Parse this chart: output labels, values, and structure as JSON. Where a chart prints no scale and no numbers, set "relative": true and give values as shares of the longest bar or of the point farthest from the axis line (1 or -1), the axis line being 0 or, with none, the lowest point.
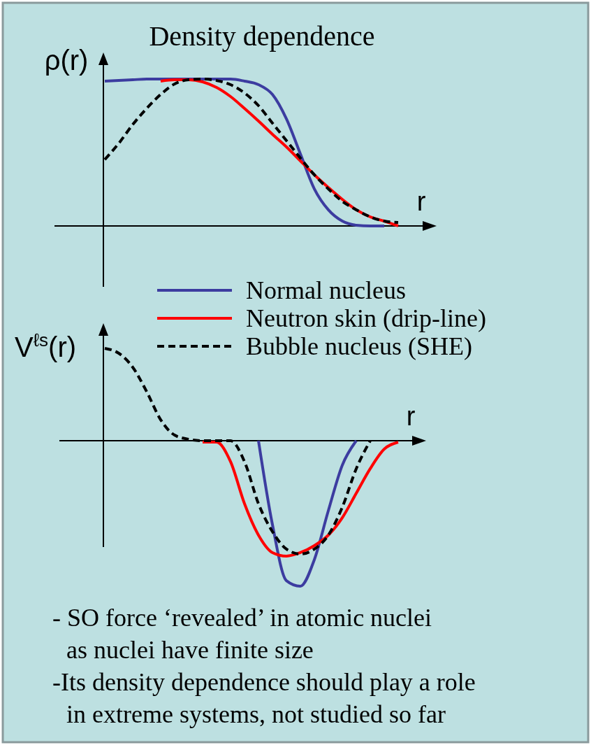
{
  "chart_data": [
    {
      "type": "line",
      "title": "Density dependence",
      "ylabel": "ρ(r)",
      "xlabel": "r",
      "relative": true,
      "categories": [
        null,
        null,
        null,
        null,
        null,
        null,
        null,
        null,
        null,
        null,
        null,
        null,
        null,
        null,
        null,
        null,
        null,
        null,
        null,
        null,
        null,
        null
      ],
      "series": [
        {
          "color": "#3c3ca0",
          "values": [
            0.986,
            0.99,
            0.995,
            1,
            1,
            1,
            1,
            1,
            1,
            1,
            0.986,
            0.962,
            0.895,
            0.729,
            0.49,
            0.252,
            0.11,
            0.033,
            0.005,
            0,
            0,
            null
          ]
        },
        {
          "color": "#ff0000",
          "values": [
            null,
            null,
            null,
            null,
            0.986,
            0.995,
            0.995,
            0.981,
            0.943,
            0.881,
            0.8,
            0.714,
            0.624,
            0.538,
            0.443,
            0.348,
            0.262,
            0.181,
            0.11,
            0.062,
            0.033,
            0
          ]
        },
        {
          "color": "#000000",
          "line_style": "dashed",
          "values": [
            0.452,
            0.562,
            0.69,
            0.8,
            0.895,
            0.967,
            0.995,
            1,
            0.99,
            0.962,
            0.905,
            0.819,
            0.7,
            0.581,
            0.462,
            0.348,
            0.252,
            0.167,
            0.11,
            0.062,
            0.033,
            0.024
          ]
        }
      ]
    },
    {
      "type": "line",
      "ylabel": "V$^{ℓs}$(r)",
      "xlabel": "r",
      "relative": true,
      "legend": "top right",
      "categories": [
        null,
        null,
        null,
        null,
        null,
        null,
        null,
        null,
        null,
        null,
        null,
        null,
        null,
        null,
        null,
        null,
        null,
        null,
        null,
        null,
        null,
        null
      ],
      "series": [
        {
          "name": "Normal nucleus",
          "color": "#3c3ca0",
          "values": [
            null,
            null,
            null,
            null,
            null,
            null,
            null,
            null,
            null,
            null,
            null,
            0,
            -0.577,
            -0.962,
            -1,
            -0.817,
            -0.481,
            -0.168,
            0,
            null,
            null,
            null
          ]
        },
        {
          "name": "Neutron skin (drip-line)",
          "color": "#ff0000",
          "values": [
            null,
            null,
            null,
            null,
            null,
            null,
            null,
            -0.01,
            -0.01,
            -0.144,
            -0.433,
            -0.649,
            -0.769,
            -0.793,
            -0.769,
            -0.721,
            -0.649,
            -0.529,
            -0.361,
            -0.192,
            -0.058,
            -0.01
          ]
        },
        {
          "name": "Bubble nucleus (SHE)",
          "color": "#000000",
          "line_style": "dashed",
          "values": [
            0.635,
            0.601,
            0.505,
            0.337,
            0.144,
            0.038,
            0.01,
            0,
            0,
            0,
            -0.144,
            -0.433,
            -0.625,
            -0.745,
            -0.779,
            -0.745,
            -0.649,
            -0.457,
            -0.192,
            0,
            null,
            null
          ]
        }
      ],
      "annotations": [
        "- SO force ‘revealed’ in atomic nuclei",
        "as nuclei have finite size",
        "-Its density dependence should play a role",
        "in extreme systems, not studied so far"
      ]
    }
  ]
}
